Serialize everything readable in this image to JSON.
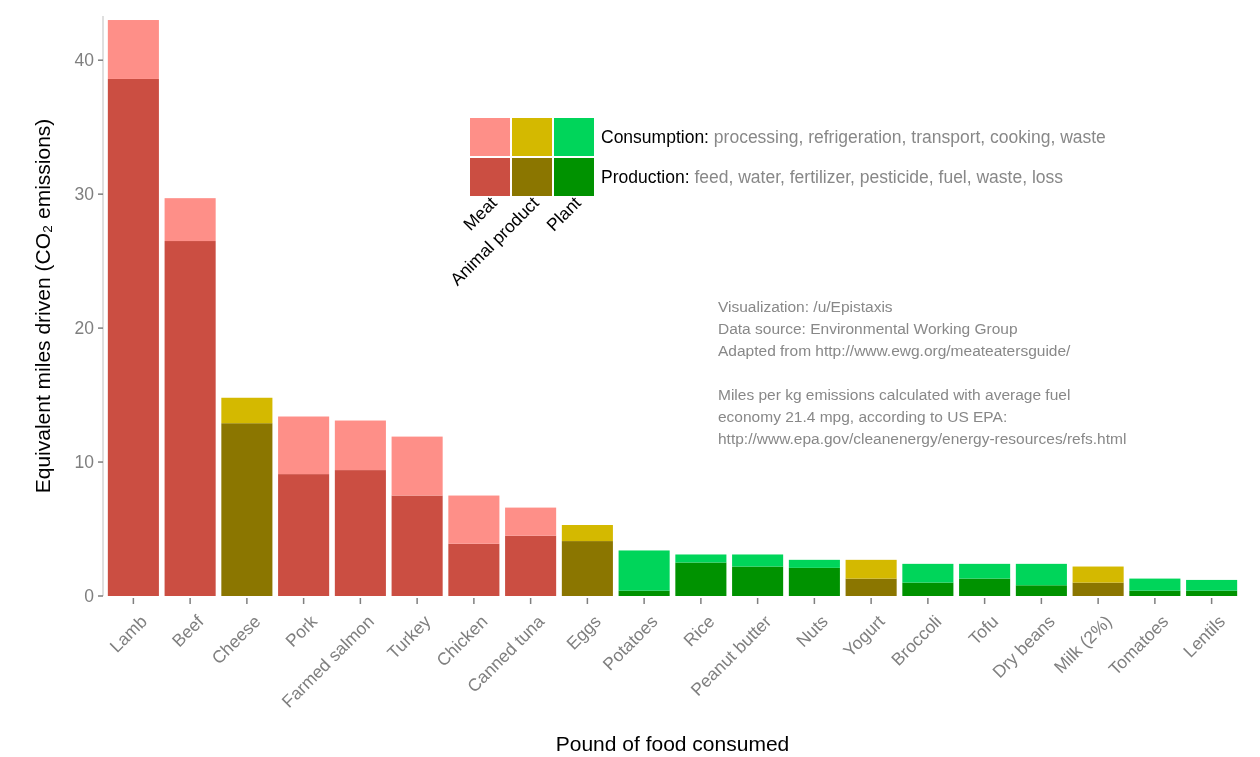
{
  "chart_data": {
    "type": "bar",
    "stacked": true,
    "xlabel": "Pound of food consumed",
    "ylabel": "Equivalent miles driven (CO₂ emissions)",
    "categories": [
      "Lamb",
      "Beef",
      "Cheese",
      "Pork",
      "Farmed salmon",
      "Turkey",
      "Chicken",
      "Canned tuna",
      "Eggs",
      "Potatoes",
      "Rice",
      "Peanut butter",
      "Nuts",
      "Yogurt",
      "Broccoli",
      "Tofu",
      "Dry beans",
      "Milk (2%)",
      "Tomatoes",
      "Lentils"
    ],
    "series": [
      {
        "name": "Production: feed, water, fertilizer, pesticide, fuel, waste, loss",
        "values": [
          38.6,
          26.5,
          12.9,
          9.1,
          9.4,
          7.5,
          3.9,
          4.5,
          4.1,
          0.4,
          2.5,
          2.2,
          2.1,
          1.3,
          1.0,
          1.3,
          0.8,
          1.0,
          0.4,
          0.4
        ],
        "colors": [
          "#cb4e42",
          "#cb4e42",
          "#8b7600",
          "#cb4e42",
          "#cb4e42",
          "#cb4e42",
          "#cb4e42",
          "#cb4e42",
          "#8b7600",
          "#009200",
          "#009200",
          "#009200",
          "#009200",
          "#8b7600",
          "#009200",
          "#009200",
          "#009200",
          "#8b7600",
          "#009200",
          "#009200"
        ]
      },
      {
        "name": "Consumption: processing, refrigeration, transport, cooking, waste",
        "values": [
          4.4,
          3.2,
          1.9,
          4.3,
          3.7,
          4.4,
          3.6,
          2.1,
          1.2,
          3.0,
          0.6,
          0.9,
          0.6,
          1.4,
          1.4,
          1.1,
          1.6,
          1.2,
          0.9,
          0.8
        ],
        "colors": [
          "#fe8f88",
          "#fe8f88",
          "#d4b900",
          "#fe8f88",
          "#fe8f88",
          "#fe8f88",
          "#fe8f88",
          "#fe8f88",
          "#d4b900",
          "#00d55a",
          "#00d55a",
          "#00d55a",
          "#00d55a",
          "#d4b900",
          "#00d55a",
          "#00d55a",
          "#00d55a",
          "#d4b900",
          "#00d55a",
          "#00d55a"
        ]
      }
    ],
    "ylim": [
      0,
      43.3
    ],
    "yticks": [
      0,
      10,
      20,
      30,
      40
    ],
    "grid": false,
    "legend": "top right",
    "annotations": [
      "Meat",
      "Animal product",
      "Plant",
      "Visualization: /u/Epistaxis\nData source: Environmental Working Group\nAdapted from http://www.ewg.org/meateatersguide/",
      "Miles per kg emissions calculated with average fuel\neconomy 21.4 mpg, according to US EPA:\nhttp://www.epa.gov/cleanenergy/energy-resources/refs.html"
    ]
  }
}
